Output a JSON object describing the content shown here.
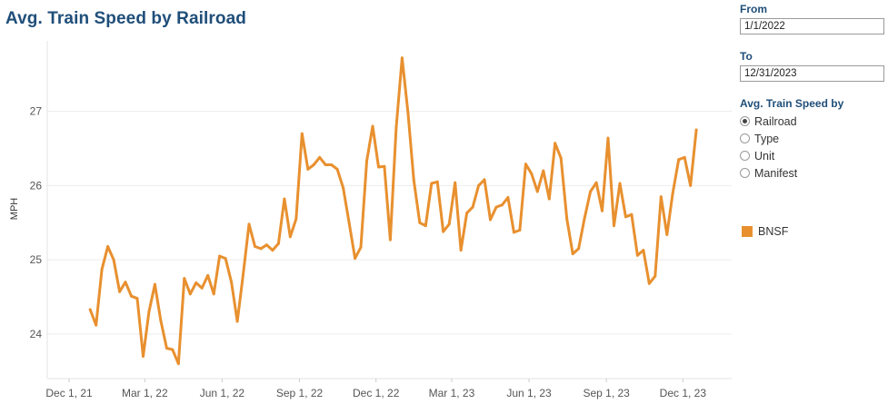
{
  "title": "Avg. Train Speed by Railroad",
  "controls": {
    "from_label": "From",
    "from_value": "1/1/2022",
    "to_label": "To",
    "to_value": "12/31/2023",
    "speed_by_label": "Avg. Train Speed by",
    "options": [
      {
        "label": "Railroad",
        "selected": true
      },
      {
        "label": "Type",
        "selected": false
      },
      {
        "label": "Unit",
        "selected": false
      },
      {
        "label": "Manifest",
        "selected": false
      }
    ]
  },
  "legend": {
    "label": "BNSF",
    "color": "#e8902f"
  },
  "chart_data": {
    "type": "line",
    "title": "Avg. Train Speed by Railroad",
    "xlabel": "",
    "ylabel": "MPH",
    "ylim": [
      23.4,
      27.95
    ],
    "yticks": [
      24,
      25,
      26,
      27
    ],
    "xticks": [
      {
        "label": "Dec 1, 21",
        "date": "2021-12-01"
      },
      {
        "label": "Mar 1, 22",
        "date": "2022-03-01"
      },
      {
        "label": "Jun 1, 22",
        "date": "2022-06-01"
      },
      {
        "label": "Sep 1, 22",
        "date": "2022-09-01"
      },
      {
        "label": "Dec 1, 22",
        "date": "2022-12-01"
      },
      {
        "label": "Mar 1, 23",
        "date": "2023-03-01"
      },
      {
        "label": "Jun 1, 23",
        "date": "2023-06-01"
      },
      {
        "label": "Sep 1, 23",
        "date": "2023-09-01"
      },
      {
        "label": "Dec 1, 23",
        "date": "2023-12-01"
      }
    ],
    "xlim": [
      "2021-11-05",
      "2024-01-28"
    ],
    "grid": true,
    "series": [
      {
        "name": "BNSF",
        "color": "#e8902f",
        "points": [
          [
            "2021-12-26",
            24.33
          ],
          [
            "2022-01-02",
            24.12
          ],
          [
            "2022-01-09",
            24.87
          ],
          [
            "2022-01-16",
            25.18
          ],
          [
            "2022-01-23",
            25.0
          ],
          [
            "2022-01-30",
            24.57
          ],
          [
            "2022-02-06",
            24.7
          ],
          [
            "2022-02-13",
            24.51
          ],
          [
            "2022-02-20",
            24.48
          ],
          [
            "2022-02-27",
            23.7
          ],
          [
            "2022-03-06",
            24.3
          ],
          [
            "2022-03-13",
            24.67
          ],
          [
            "2022-03-20",
            24.18
          ],
          [
            "2022-03-27",
            23.81
          ],
          [
            "2022-04-03",
            23.79
          ],
          [
            "2022-04-10",
            23.6
          ],
          [
            "2022-04-17",
            24.75
          ],
          [
            "2022-04-24",
            24.54
          ],
          [
            "2022-05-01",
            24.69
          ],
          [
            "2022-05-08",
            24.62
          ],
          [
            "2022-05-15",
            24.79
          ],
          [
            "2022-05-22",
            24.54
          ],
          [
            "2022-05-29",
            25.05
          ],
          [
            "2022-06-05",
            25.02
          ],
          [
            "2022-06-12",
            24.7
          ],
          [
            "2022-06-19",
            24.17
          ],
          [
            "2022-06-26",
            24.8
          ],
          [
            "2022-07-03",
            25.48
          ],
          [
            "2022-07-10",
            25.18
          ],
          [
            "2022-07-17",
            25.15
          ],
          [
            "2022-07-24",
            25.2
          ],
          [
            "2022-07-31",
            25.13
          ],
          [
            "2022-08-07",
            25.22
          ],
          [
            "2022-08-14",
            25.82
          ],
          [
            "2022-08-21",
            25.31
          ],
          [
            "2022-08-28",
            25.55
          ],
          [
            "2022-09-04",
            26.7
          ],
          [
            "2022-09-11",
            26.22
          ],
          [
            "2022-09-18",
            26.28
          ],
          [
            "2022-09-25",
            26.38
          ],
          [
            "2022-10-02",
            26.28
          ],
          [
            "2022-10-09",
            26.28
          ],
          [
            "2022-10-16",
            26.22
          ],
          [
            "2022-10-23",
            25.97
          ],
          [
            "2022-10-30",
            25.5
          ],
          [
            "2022-11-06",
            25.02
          ],
          [
            "2022-11-13",
            25.17
          ],
          [
            "2022-11-20",
            26.33
          ],
          [
            "2022-11-27",
            26.8
          ],
          [
            "2022-12-04",
            26.25
          ],
          [
            "2022-12-11",
            26.26
          ],
          [
            "2022-12-18",
            25.27
          ],
          [
            "2022-12-25",
            26.78
          ],
          [
            "2023-01-01",
            27.72
          ],
          [
            "2023-01-08",
            26.98
          ],
          [
            "2023-01-15",
            26.07
          ],
          [
            "2023-01-22",
            25.5
          ],
          [
            "2023-01-29",
            25.46
          ],
          [
            "2023-02-05",
            26.03
          ],
          [
            "2023-02-12",
            26.05
          ],
          [
            "2023-02-19",
            25.38
          ],
          [
            "2023-02-26",
            25.48
          ],
          [
            "2023-03-05",
            26.04
          ],
          [
            "2023-03-12",
            25.13
          ],
          [
            "2023-03-19",
            25.63
          ],
          [
            "2023-03-26",
            25.71
          ],
          [
            "2023-04-02",
            26.0
          ],
          [
            "2023-04-09",
            26.08
          ],
          [
            "2023-04-16",
            25.54
          ],
          [
            "2023-04-23",
            25.71
          ],
          [
            "2023-04-30",
            25.74
          ],
          [
            "2023-05-07",
            25.84
          ],
          [
            "2023-05-14",
            25.37
          ],
          [
            "2023-05-21",
            25.4
          ],
          [
            "2023-05-28",
            26.29
          ],
          [
            "2023-06-04",
            26.16
          ],
          [
            "2023-06-11",
            25.92
          ],
          [
            "2023-06-18",
            26.2
          ],
          [
            "2023-06-25",
            25.82
          ],
          [
            "2023-07-02",
            26.57
          ],
          [
            "2023-07-09",
            26.37
          ],
          [
            "2023-07-16",
            25.55
          ],
          [
            "2023-07-23",
            25.08
          ],
          [
            "2023-07-30",
            25.15
          ],
          [
            "2023-08-06",
            25.56
          ],
          [
            "2023-08-13",
            25.92
          ],
          [
            "2023-08-20",
            26.04
          ],
          [
            "2023-08-27",
            25.66
          ],
          [
            "2023-09-03",
            26.64
          ],
          [
            "2023-09-10",
            25.46
          ],
          [
            "2023-09-17",
            26.03
          ],
          [
            "2023-09-24",
            25.58
          ],
          [
            "2023-10-01",
            25.61
          ],
          [
            "2023-10-08",
            25.06
          ],
          [
            "2023-10-15",
            25.13
          ],
          [
            "2023-10-22",
            24.68
          ],
          [
            "2023-10-29",
            24.78
          ],
          [
            "2023-11-05",
            25.85
          ],
          [
            "2023-11-12",
            25.34
          ],
          [
            "2023-11-19",
            25.9
          ],
          [
            "2023-11-26",
            26.35
          ],
          [
            "2023-12-03",
            26.38
          ],
          [
            "2023-12-10",
            26.0
          ],
          [
            "2023-12-17",
            26.75
          ]
        ]
      }
    ]
  }
}
